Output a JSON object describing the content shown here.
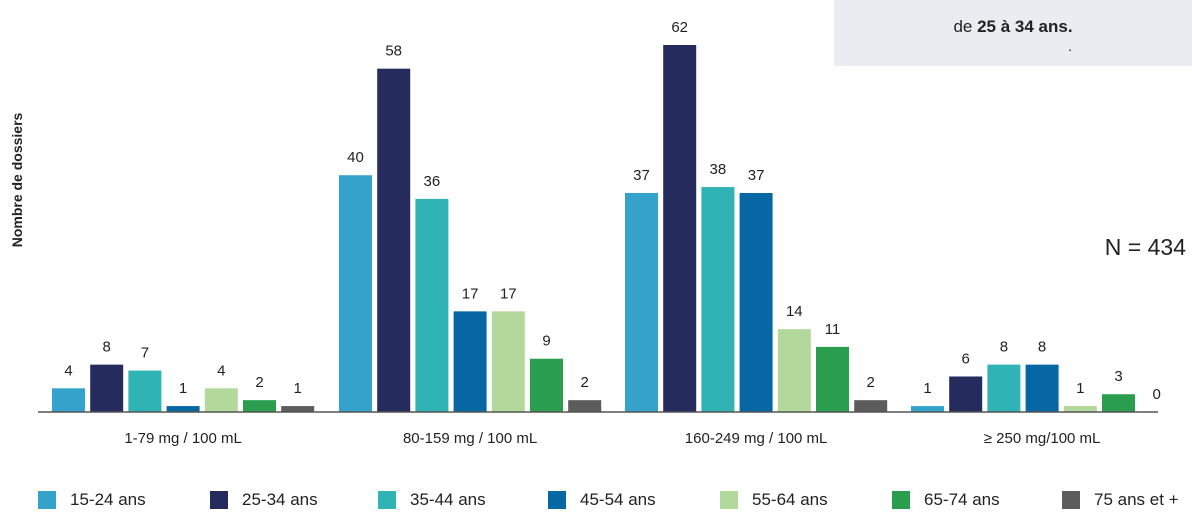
{
  "chart_data": {
    "type": "bar",
    "title": "",
    "xlabel": "",
    "ylabel": "Nombre de dossiers",
    "ylim": [
      0,
      64
    ],
    "grid": false,
    "legend_position": "bottom",
    "categories": [
      "1-79 mg / 100 mL",
      "80-159 mg / 100 mL",
      "160-249 mg / 100 mL",
      "≥ 250 mg/100 mL"
    ],
    "series": [
      {
        "name": "15-24 ans",
        "color": "#35a2cb",
        "values": [
          4,
          40,
          37,
          1
        ]
      },
      {
        "name": "25-34 ans",
        "color": "#262b5e",
        "values": [
          8,
          58,
          62,
          6
        ]
      },
      {
        "name": "35-44 ans",
        "color": "#2fb3b4",
        "values": [
          7,
          36,
          38,
          8
        ]
      },
      {
        "name": "45-54 ans",
        "color": "#0767a5",
        "values": [
          1,
          17,
          37,
          8
        ]
      },
      {
        "name": "55-64 ans",
        "color": "#b3d89b",
        "values": [
          4,
          17,
          14,
          1
        ]
      },
      {
        "name": "65-74 ans",
        "color": "#2a9d4e",
        "values": [
          2,
          9,
          11,
          3
        ]
      },
      {
        "name": "75 ans et +",
        "color": "#5c5c5c",
        "values": [
          1,
          2,
          2,
          0
        ]
      }
    ],
    "annotation": "N = 434"
  },
  "callout": {
    "line2_prefix": "de ",
    "line2_bold": "25 à 34 ans.",
    "dot": "."
  }
}
